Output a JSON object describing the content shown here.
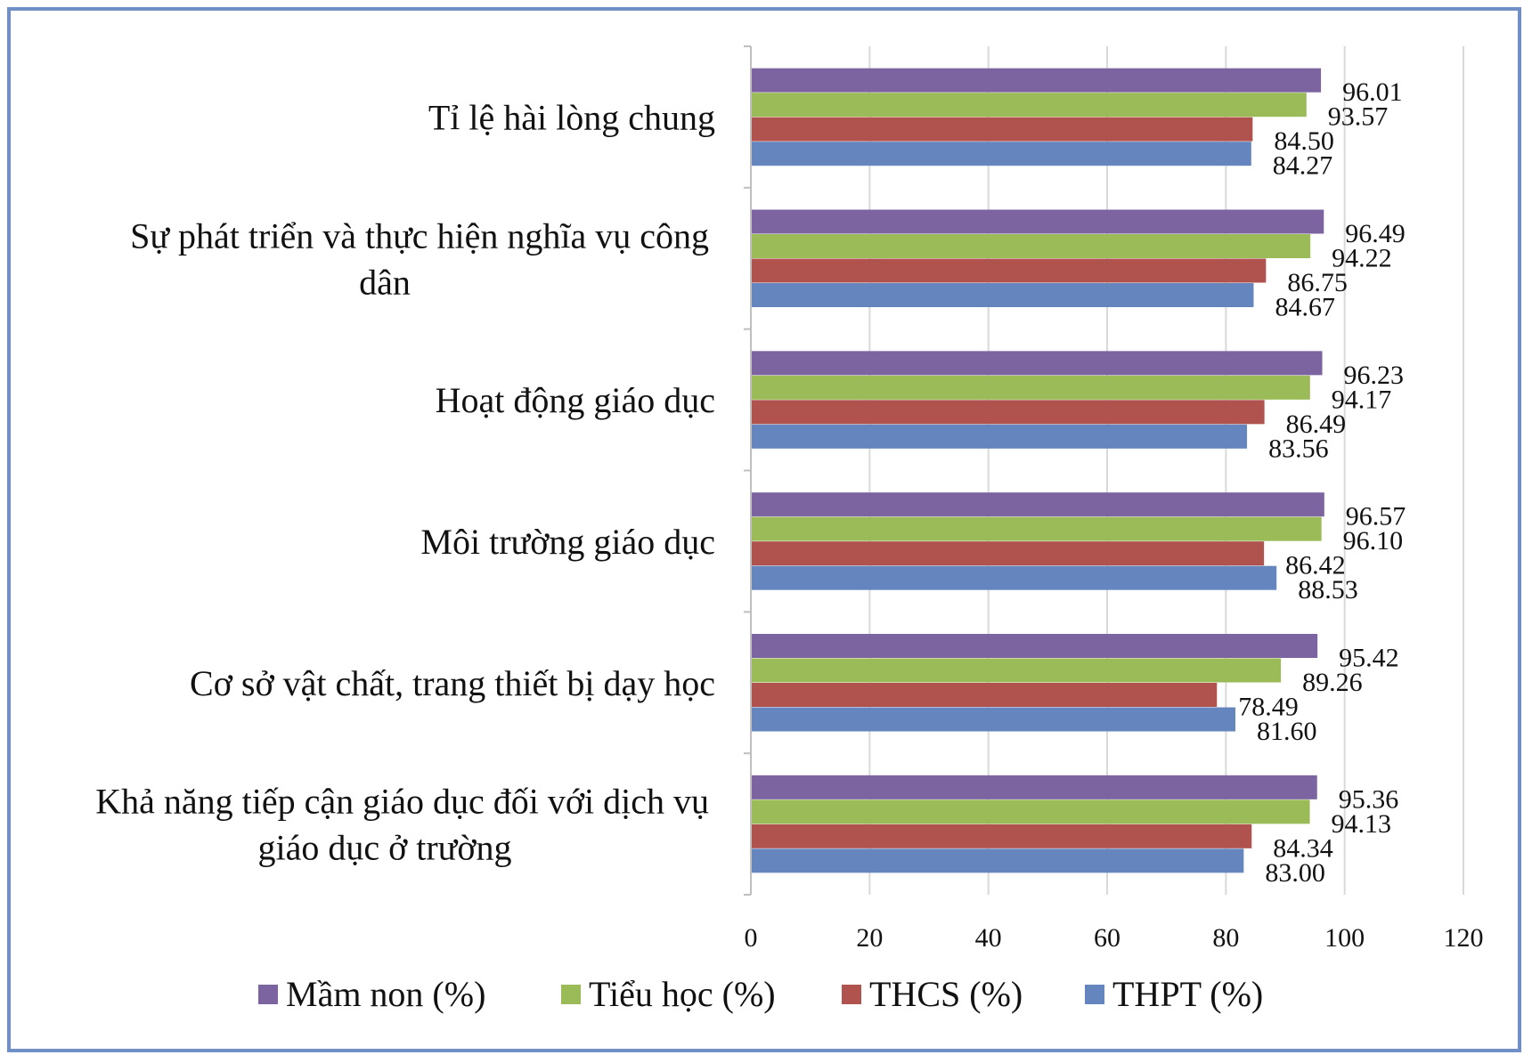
{
  "chart_data": {
    "type": "bar",
    "orientation": "horizontal",
    "title": "",
    "xlabel": "",
    "ylabel": "",
    "xlim": [
      0,
      120
    ],
    "x_ticks": [
      0,
      20,
      40,
      60,
      80,
      100,
      120
    ],
    "grid": "vertical",
    "legend_position": "bottom",
    "categories": [
      [
        "Tỉ lệ hài lòng chung"
      ],
      [
        "Sự phát triển và thực hiện nghĩa vụ công",
        "dân"
      ],
      [
        "Hoạt động giáo dục"
      ],
      [
        "Môi trường giáo dục"
      ],
      [
        "Cơ sở vật chất, trang thiết bị dạy học"
      ],
      [
        "Khả năng tiếp cận giáo dục đối với dịch vụ",
        "giáo dục ở trường"
      ]
    ],
    "series": [
      {
        "name": "Mầm non (%)",
        "color": "#7b64a0",
        "values": [
          96.01,
          96.49,
          96.23,
          96.57,
          95.42,
          95.36
        ],
        "labels": [
          "96.01",
          "96.49",
          "96.23",
          "96.57",
          "95.42",
          "95.36"
        ]
      },
      {
        "name": "Tiểu học (%)",
        "color": "#9bbb59",
        "values": [
          93.57,
          94.22,
          94.17,
          96.1,
          89.26,
          94.13
        ],
        "labels": [
          "93.57",
          "94.22",
          "94.17",
          "96.10",
          "89.26",
          "94.13"
        ]
      },
      {
        "name": "THCS (%)",
        "color": "#b0524d",
        "values": [
          84.5,
          86.75,
          86.49,
          86.42,
          78.49,
          84.34
        ],
        "labels": [
          "84.50",
          "86.75",
          "86.49",
          "86.42",
          "78.49",
          "84.34"
        ]
      },
      {
        "name": "THPT (%)",
        "color": "#6585be",
        "values": [
          84.27,
          84.67,
          83.56,
          88.53,
          81.6,
          83.0
        ],
        "labels": [
          "84.27",
          "84.67",
          "83.56",
          "88.53",
          "81.60",
          "83.00"
        ]
      }
    ]
  }
}
